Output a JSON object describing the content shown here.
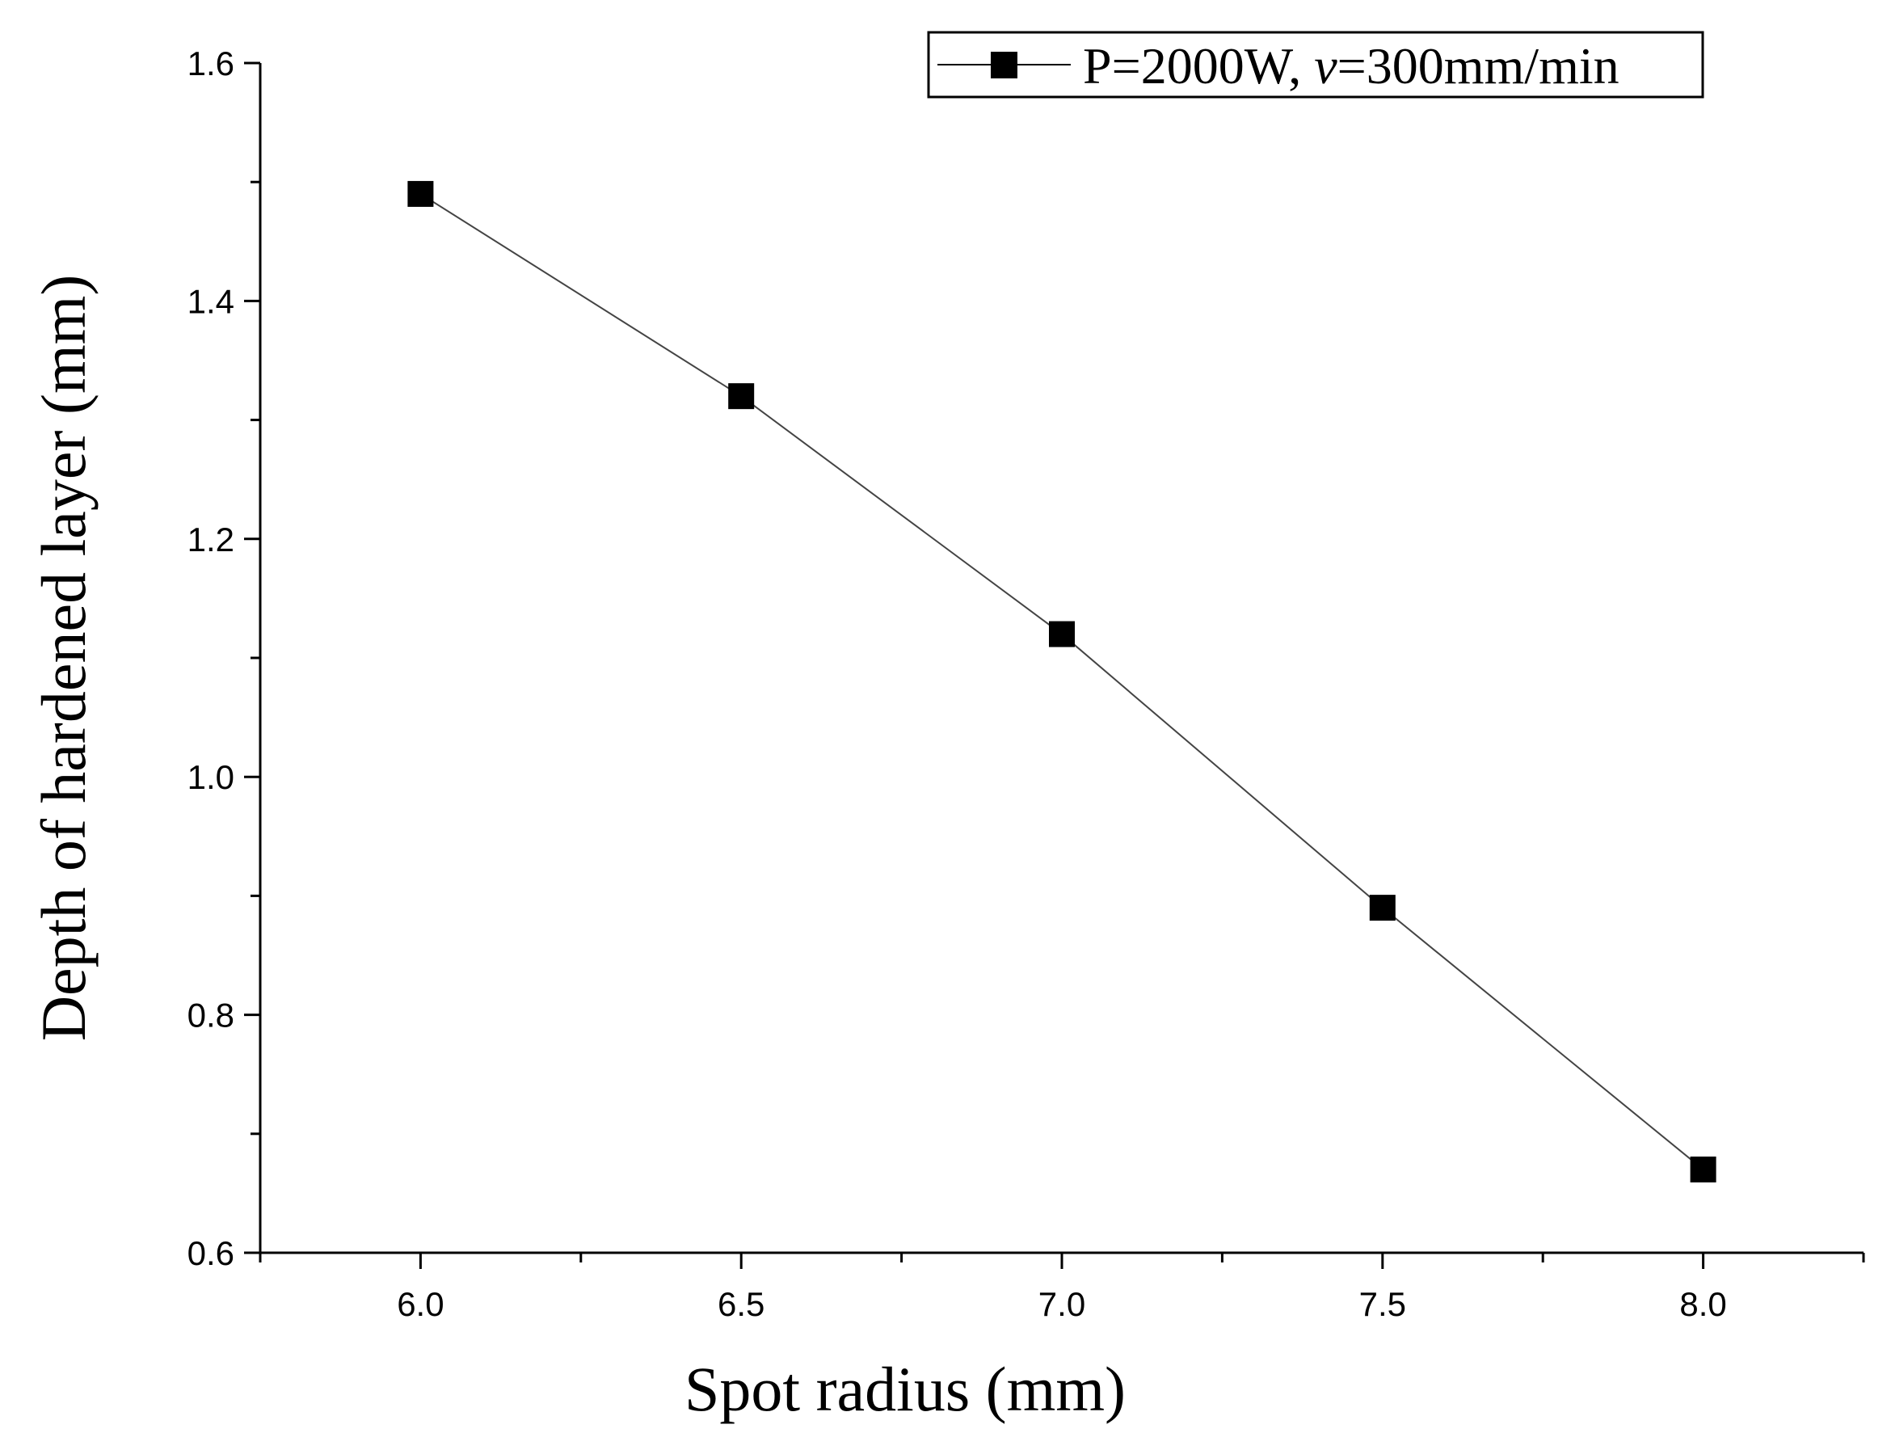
{
  "chart_data": {
    "type": "line",
    "title": "",
    "xlabel": "Spot radius (mm)",
    "ylabel": "Depth of hardened layer (mm)",
    "xlim": [
      5.75,
      8.25
    ],
    "ylim": [
      0.6,
      1.6
    ],
    "xticks": [
      "6.0",
      "6.5",
      "7.0",
      "7.5",
      "8.0"
    ],
    "xtick_values": [
      6.0,
      6.5,
      7.0,
      7.5,
      8.0
    ],
    "yticks": [
      "0.6",
      "0.8",
      "1.0",
      "1.2",
      "1.4",
      "1.6"
    ],
    "ytick_values": [
      0.6,
      0.8,
      1.0,
      1.2,
      1.4,
      1.6
    ],
    "grid": false,
    "legend_placement": "top-right",
    "series": [
      {
        "name": "P=2000W, v=300mm/min",
        "name_parts": [
          "P=2000W, ",
          "v",
          "=300mm/min"
        ],
        "marker": "square",
        "color": "#000000",
        "x": [
          6.0,
          6.5,
          7.0,
          7.5,
          8.0
        ],
        "y": [
          1.49,
          1.32,
          1.12,
          0.89,
          0.67
        ]
      }
    ]
  }
}
